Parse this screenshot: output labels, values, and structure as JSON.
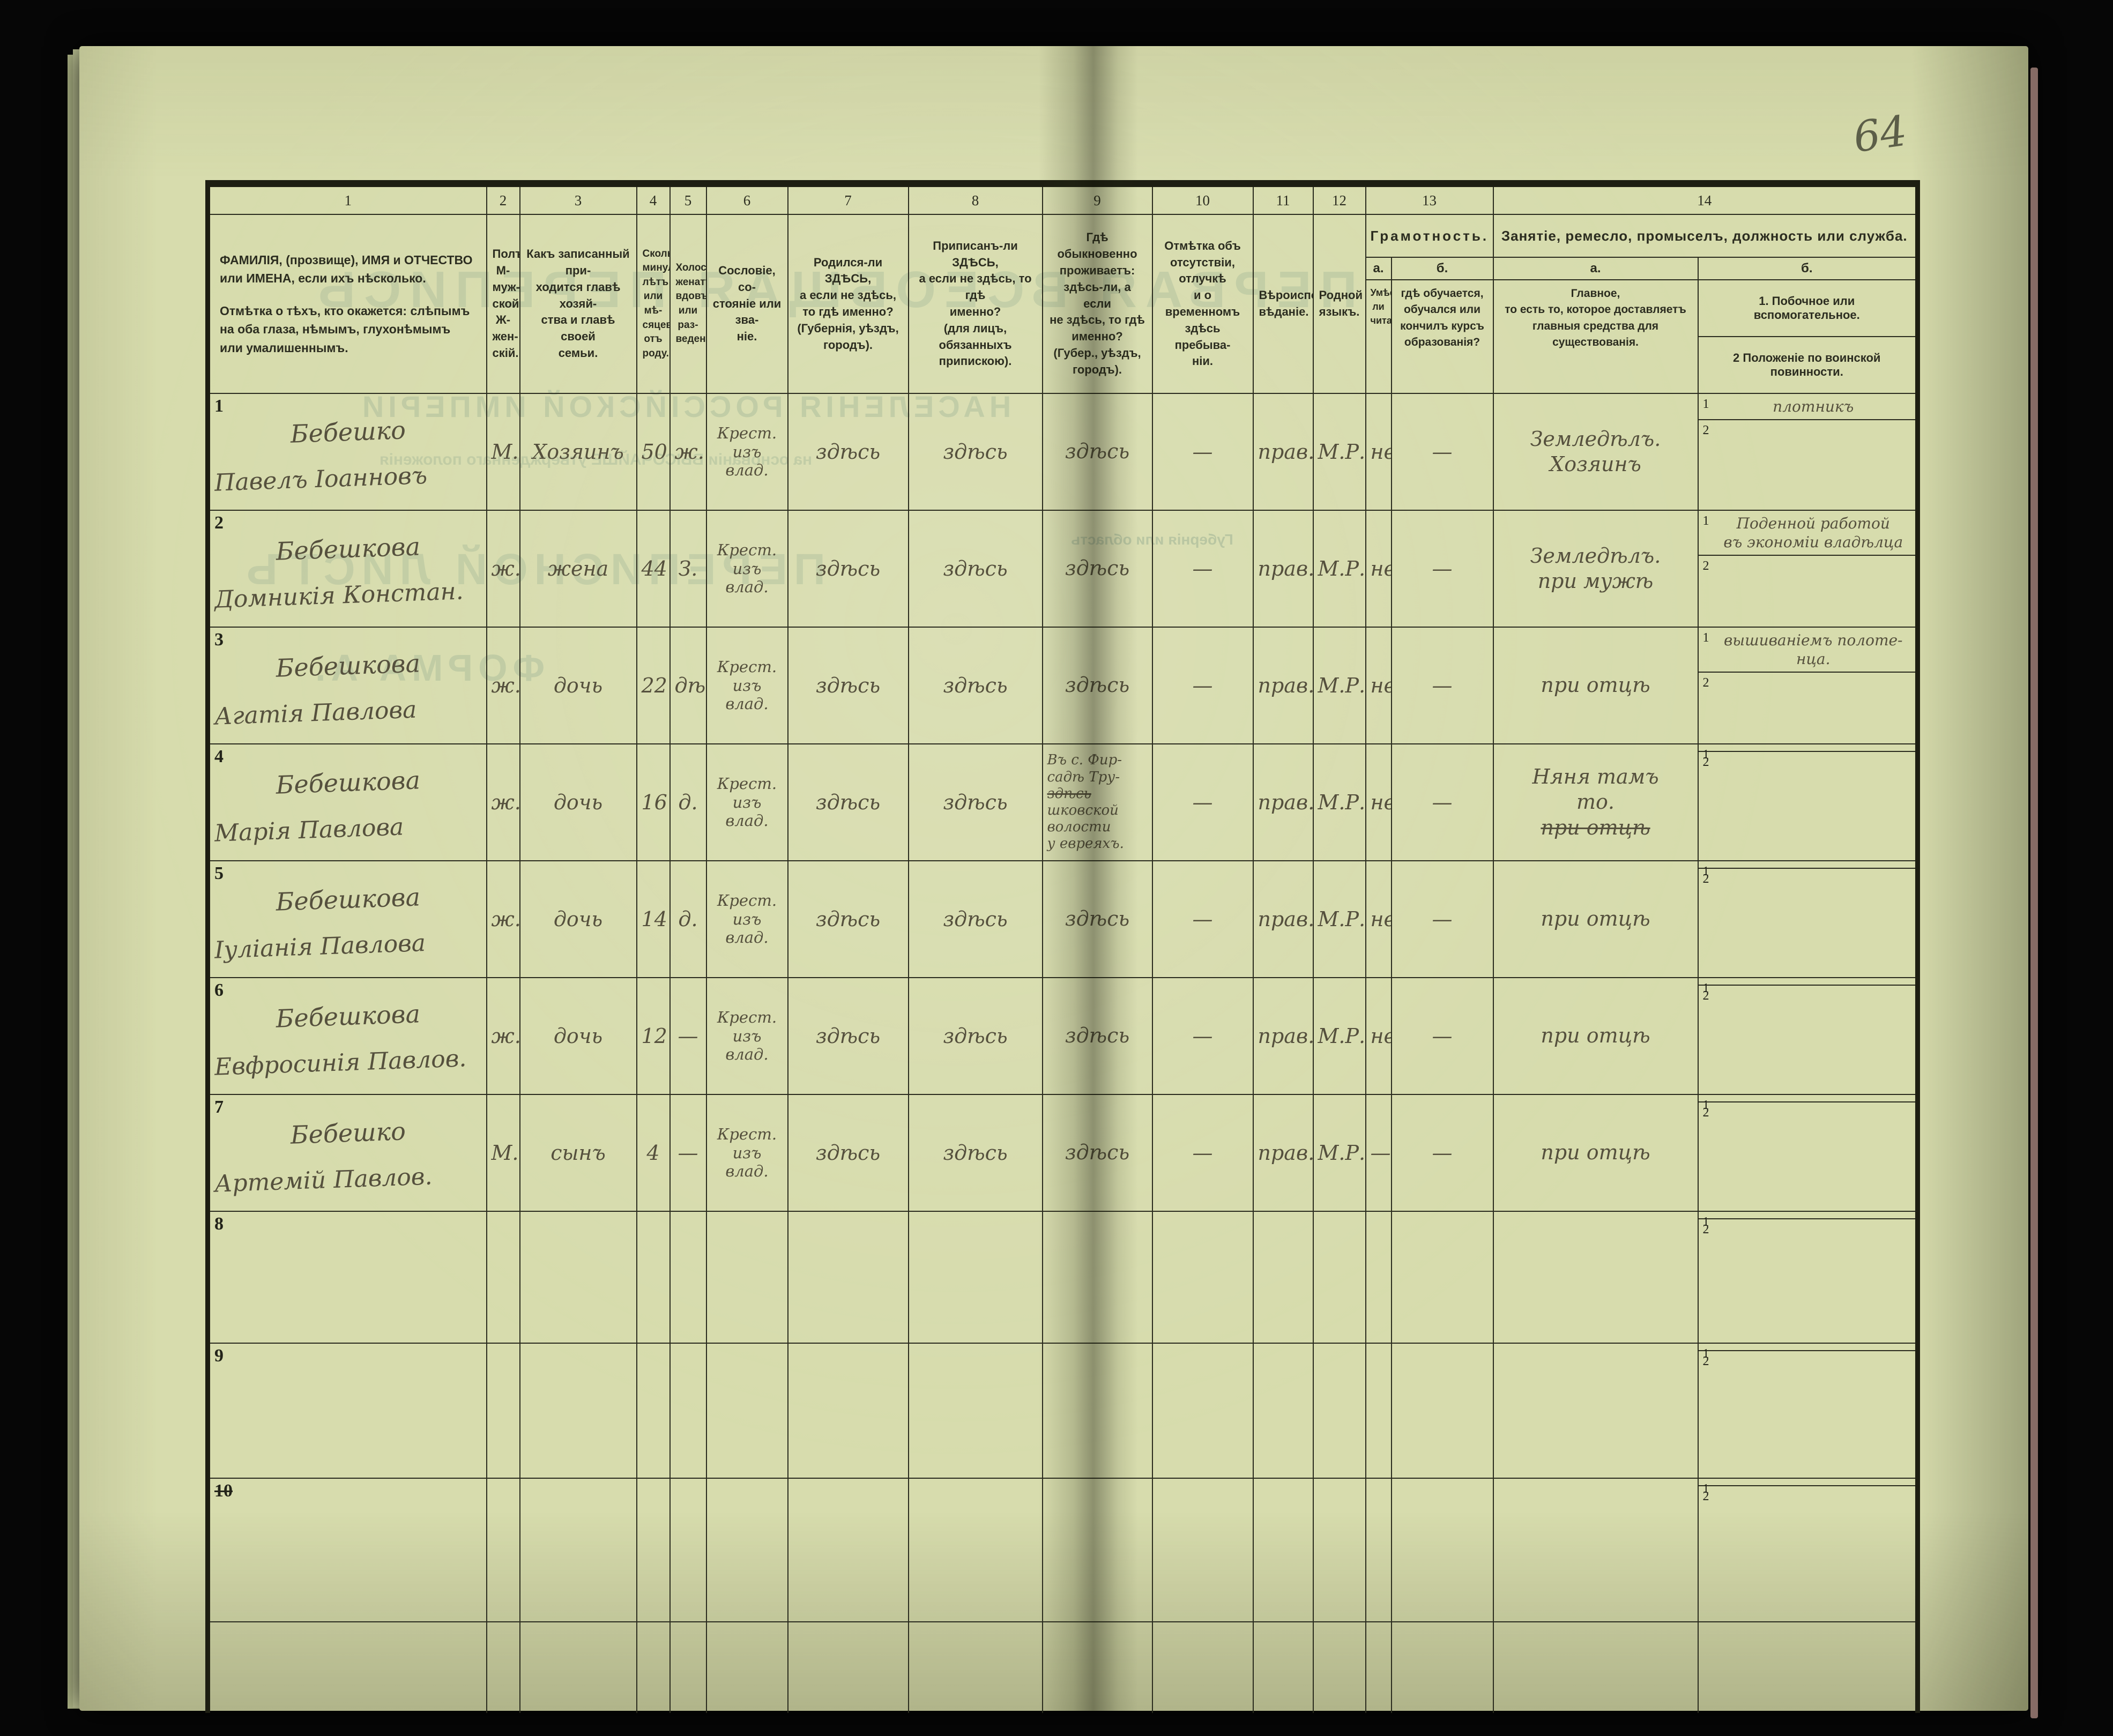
{
  "page_number": "64",
  "ghosts": [
    "ПЕРВАЯ ВСЕОБЩАЯ ПЕРЕПИСЬ",
    "НАСЕЛЕНІЯ РОССІЙСКОЙ ИМПЕРІИ",
    "на основаніи ВЫСОЧАЙШЕ утвержденнаго положенія",
    "ПЕРЕПИСНОЙ ЛИСТЪ",
    "ФОРМА А.",
    "Губернія или область"
  ],
  "header": {
    "col_numbers": [
      "1",
      "2",
      "3",
      "4",
      "5",
      "6",
      "7",
      "8",
      "9",
      "10",
      "11",
      "12",
      "13",
      "14"
    ],
    "c1a": "ФАМИЛІЯ, (прозвище), ИМЯ и ОТЧЕСТВО или ИМЕНА, если ихъ нѣсколько.",
    "c1b": "Отмѣтка о тѣхъ, кто окажется: слѣпымъ на оба глаза, нѣмымъ, глухонѣмымъ или умалишеннымъ.",
    "c2": "Полъ.\nМ-муж-\nской.\nЖ-жен-\nскій.",
    "c3": "Какъ записанный при-\nходится главѣ хозяй-\nства и главѣ своей\nсемьи.",
    "c4": "Сколько\nминуло\nлѣтъ\nили мѣ-\nсяцевъ\nотъ роду.",
    "c5": "Холостъ,\nженатъ,\nвдовъ\nили раз-\nведенъ.",
    "c6": "Сословіе, со-\nстояніе или зва-\nніе.",
    "c7": "Родился-ли ЗДѢСЬ,\nа если не здѣсь,\nто гдѣ именно?\n(Губернія, уѣздъ, городъ).",
    "c8": "Приписанъ-ли ЗДѢСЬ,\nа если не здѣсь, то гдѣ\nименно?\n(для лицъ, обязанныхъ\nприпискою).",
    "c9": "Гдѣ обыкновенно\nпроживаетъ:\nздѣсь-ли, а если\nне здѣсь, то гдѣ\nименно?\n(Губер., уѣздъ, городъ).",
    "c10": "Отмѣтка объ\nотсутствіи, отлучкѣ\nи о временномъ\nздѣсь пребыва-\nніи.",
    "c11": "Вѣроиспо-\nвѣданіе.",
    "c12": "Родной\nязыкъ.",
    "c13": "Грамотность.",
    "c13a_label": "а.",
    "c13a": "Умѣетъ-\nли\nчитать?",
    "c13b_label": "б.",
    "c13b": "гдѣ обучается,\nобучался или\nкончилъ курсъ\nобразованія?",
    "c14": "Занятіе, ремесло, промыселъ, должность или служба.",
    "c14a_label": "а.",
    "c14a": "Главное,\nто есть то, которое доставляетъ\nглавныя средства для существованія.",
    "c14b_label": "б.",
    "c14b1": "1. Побочное или вспомогательное.",
    "c14b2": "2 Положеніе по воинской повинности."
  },
  "rows": [
    {
      "num": "1",
      "num_struck": false,
      "surname": "Бебешко",
      "name": "Павелъ Іоанновъ",
      "sex": "М.",
      "relation": "Хозяинъ",
      "age": "50",
      "marital": "ж.",
      "estate": "Крест.\nизъ влад.",
      "born": "здѣсь",
      "registered": "здѣсь",
      "residence": [
        [
          "здѣсь",
          false
        ]
      ],
      "absence": "—",
      "faith": "прав.",
      "language": "М.Р.",
      "reads": "неум.",
      "education": "—",
      "occupation": [
        [
          "Земледѣлъ.",
          false
        ],
        [
          "Хозяинъ",
          false
        ]
      ],
      "side": "плотникъ",
      "military": ""
    },
    {
      "num": "2",
      "num_struck": false,
      "surname": "Бебешкова",
      "name": "Домникія Констан.",
      "sex": "ж.",
      "relation": "жена",
      "age": "44",
      "marital": "З.",
      "estate": "Крест.\nизъ влад.",
      "born": "здѣсь",
      "registered": "здѣсь",
      "residence": [
        [
          "здѣсь",
          false
        ]
      ],
      "absence": "—",
      "faith": "прав.",
      "language": "М.Р.",
      "reads": "неум.",
      "education": "—",
      "occupation": [
        [
          "Земледѣлъ.",
          false
        ],
        [
          "при мужѣ",
          false
        ]
      ],
      "side": "Поденной работой\nвъ экономіи владѣлца",
      "military": ""
    },
    {
      "num": "3",
      "num_struck": false,
      "surname": "Бебешкова",
      "name": "Агатія Павлова",
      "sex": "ж.",
      "relation": "дочь",
      "age": "22",
      "marital": "дѣ.",
      "estate": "Крест.\nизъ влад.",
      "born": "здѣсь",
      "registered": "здѣсь",
      "residence": [
        [
          "здѣсь",
          false
        ]
      ],
      "absence": "—",
      "faith": "прав.",
      "language": "М.Р.",
      "reads": "неум.",
      "education": "—",
      "occupation": [
        [
          "при отцѣ",
          false
        ]
      ],
      "side": "вышиваніемъ полоте-\nнца.",
      "military": ""
    },
    {
      "num": "4",
      "num_struck": false,
      "surname": "Бебешкова",
      "name": "Марія Павлова",
      "sex": "ж.",
      "relation": "дочь",
      "age": "16",
      "marital": "д.",
      "estate": "Крест.\nизъ влад.",
      "born": "здѣсь",
      "registered": "здѣсь",
      "residence": [
        [
          "Въ с. Фир-",
          false
        ],
        [
          "садѣ Тру-",
          false
        ],
        [
          "здѣсь",
          true
        ],
        [
          "шковской",
          false
        ],
        [
          "волости",
          false
        ],
        [
          "у евреяхъ.",
          false
        ]
      ],
      "absence": "—",
      "faith": "прав.",
      "language": "М.Р.",
      "reads": "неум.",
      "education": "—",
      "occupation": [
        [
          "Няня тамъ",
          false
        ],
        [
          "то.",
          false
        ],
        [
          "при отцѣ",
          true
        ]
      ],
      "side": "",
      "military": ""
    },
    {
      "num": "5",
      "num_struck": false,
      "surname": "Бебешкова",
      "name": "Іуліанія Павлова",
      "sex": "ж.",
      "relation": "дочь",
      "age": "14",
      "marital": "д.",
      "estate": "Крест.\nизъ влад.",
      "born": "здѣсь",
      "registered": "здѣсь",
      "residence": [
        [
          "здѣсь",
          false
        ]
      ],
      "absence": "—",
      "faith": "прав.",
      "language": "М.Р.",
      "reads": "неум.",
      "education": "—",
      "occupation": [
        [
          "при отцѣ",
          false
        ]
      ],
      "side": "",
      "military": ""
    },
    {
      "num": "6",
      "num_struck": false,
      "surname": "Бебешкова",
      "name": "Евфросинія Павлов.",
      "sex": "ж.",
      "relation": "дочь",
      "age": "12",
      "marital": "—",
      "estate": "Крест.\nизъ влад.",
      "born": "здѣсь",
      "registered": "здѣсь",
      "residence": [
        [
          "здѣсь",
          false
        ]
      ],
      "absence": "—",
      "faith": "прав.",
      "language": "М.Р.",
      "reads": "неум.",
      "education": "—",
      "occupation": [
        [
          "при отцѣ",
          false
        ]
      ],
      "side": "",
      "military": ""
    },
    {
      "num": "7",
      "num_struck": false,
      "surname": "Бебешко",
      "name": "Артемій Павлов.",
      "sex": "М.",
      "relation": "сынъ",
      "age": "4",
      "marital": "—",
      "estate": "Крест.\nизъ влад.",
      "born": "здѣсь",
      "registered": "здѣсь",
      "residence": [
        [
          "здѣсь",
          false
        ]
      ],
      "absence": "—",
      "faith": "прав.",
      "language": "М.Р.",
      "reads": "—",
      "education": "—",
      "occupation": [
        [
          "при отцѣ",
          false
        ]
      ],
      "side": "",
      "military": ""
    },
    {
      "num": "8",
      "num_struck": false,
      "surname": "",
      "name": "",
      "sex": "",
      "relation": "",
      "age": "",
      "marital": "",
      "estate": "",
      "born": "",
      "registered": "",
      "residence": [],
      "absence": "",
      "faith": "",
      "language": "",
      "reads": "",
      "education": "",
      "occupation": [],
      "side": "",
      "military": ""
    },
    {
      "num": "9",
      "num_struck": false,
      "surname": "",
      "name": "",
      "sex": "",
      "relation": "",
      "age": "",
      "marital": "",
      "estate": "",
      "born": "",
      "registered": "",
      "residence": [],
      "absence": "",
      "faith": "",
      "language": "",
      "reads": "",
      "education": "",
      "occupation": [],
      "side": "",
      "military": ""
    },
    {
      "num": "10",
      "num_struck": true,
      "surname": "",
      "name": "",
      "sex": "",
      "relation": "",
      "age": "",
      "marital": "",
      "estate": "",
      "born": "",
      "registered": "",
      "residence": [],
      "absence": "",
      "faith": "",
      "language": "",
      "reads": "",
      "education": "",
      "occupation": [],
      "side": "",
      "military": ""
    }
  ]
}
